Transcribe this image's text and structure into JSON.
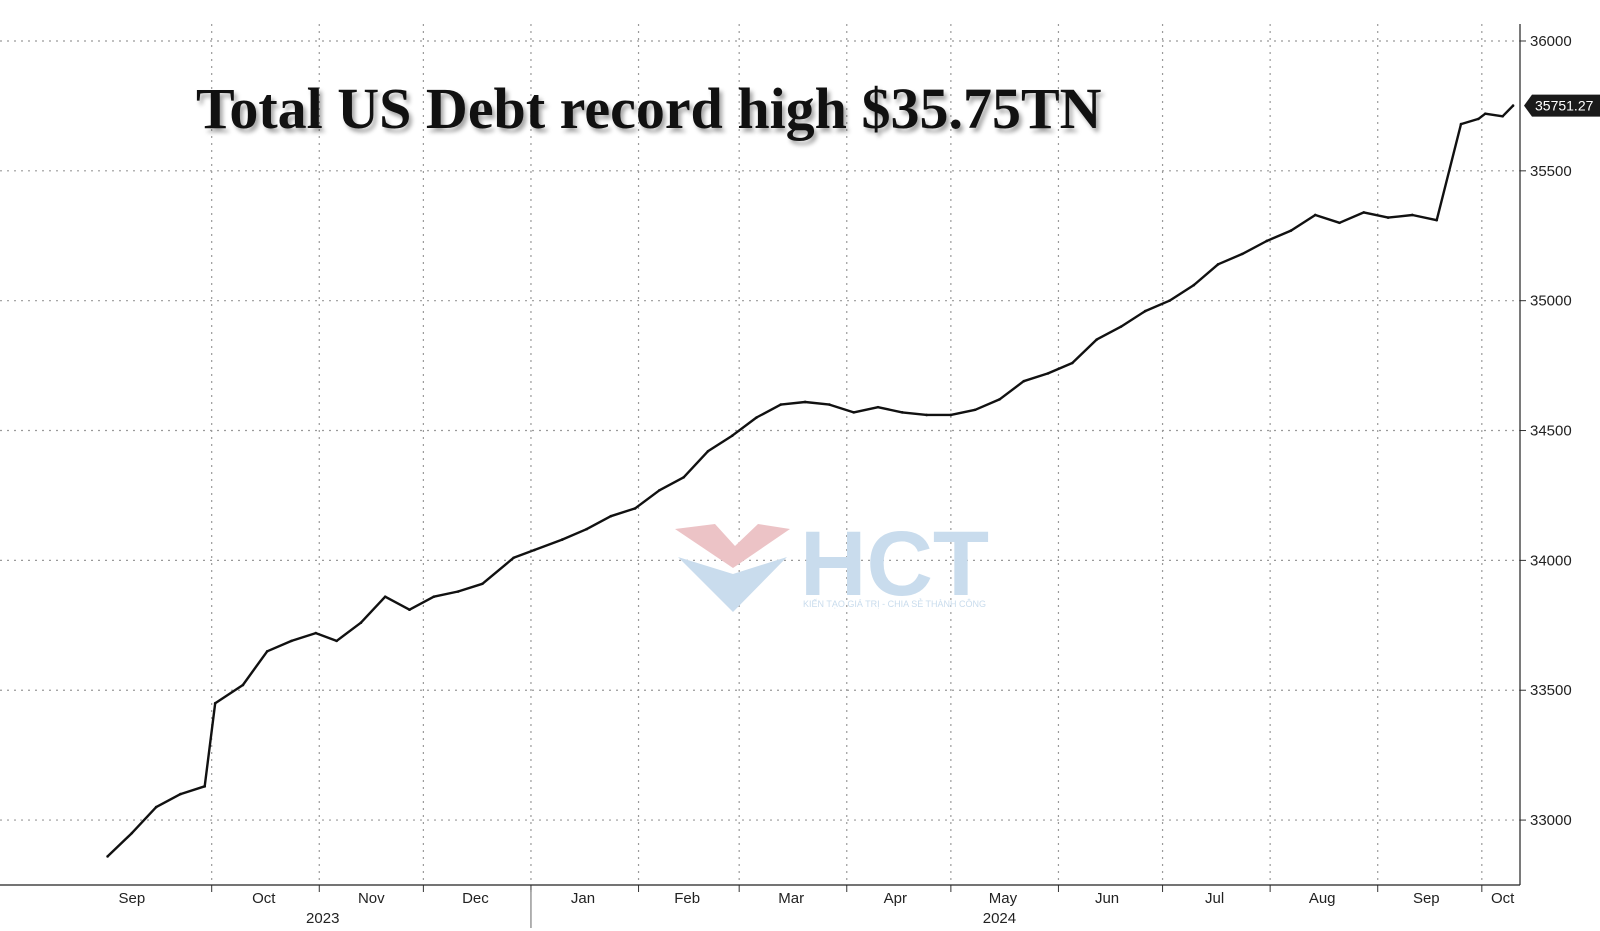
{
  "chart_data": {
    "type": "line",
    "title": "Total US Debt record high $35.75TN",
    "ylim": [
      32750,
      36050
    ],
    "y_ticks": [
      33000,
      33500,
      34000,
      34500,
      35000,
      35500,
      36000
    ],
    "y_tick_labels": [
      "33000",
      "33500",
      "34000",
      "34500",
      "35000",
      "35500",
      "36000"
    ],
    "x_month_labels": [
      "Sep",
      "Oct",
      "Nov",
      "Dec",
      "Jan",
      "Feb",
      "Mar",
      "Apr",
      "May",
      "Jun",
      "Jul",
      "Aug",
      "Sep",
      "Oct"
    ],
    "x_year_labels": [
      "2023",
      "2024"
    ],
    "grid": true,
    "last_value_label": "35751.27",
    "series": [
      {
        "color": "#111111",
        "x": [
          "2023-09-01",
          "2023-09-08",
          "2023-09-15",
          "2023-09-22",
          "2023-09-29",
          "2023-10-02",
          "2023-10-10",
          "2023-10-17",
          "2023-10-24",
          "2023-10-31",
          "2023-11-06",
          "2023-11-13",
          "2023-11-20",
          "2023-11-27",
          "2023-12-04",
          "2023-12-11",
          "2023-12-18",
          "2023-12-27",
          "2024-01-02",
          "2024-01-10",
          "2024-01-17",
          "2024-01-24",
          "2024-01-31",
          "2024-02-07",
          "2024-02-14",
          "2024-02-21",
          "2024-02-28",
          "2024-03-06",
          "2024-03-13",
          "2024-03-20",
          "2024-03-27",
          "2024-04-03",
          "2024-04-10",
          "2024-04-17",
          "2024-04-24",
          "2024-05-01",
          "2024-05-08",
          "2024-05-15",
          "2024-05-22",
          "2024-05-29",
          "2024-06-05",
          "2024-06-12",
          "2024-06-19",
          "2024-06-26",
          "2024-07-03",
          "2024-07-10",
          "2024-07-17",
          "2024-07-24",
          "2024-07-31",
          "2024-08-07",
          "2024-08-14",
          "2024-08-21",
          "2024-08-28",
          "2024-09-04",
          "2024-09-11",
          "2024-09-18",
          "2024-09-25",
          "2024-09-30",
          "2024-10-02",
          "2024-10-07",
          "2024-10-10"
        ],
        "y": [
          32860,
          32950,
          33050,
          33100,
          33130,
          33450,
          33520,
          33650,
          33690,
          33720,
          33690,
          33760,
          33860,
          33810,
          33860,
          33880,
          33910,
          34010,
          34040,
          34080,
          34120,
          34170,
          34200,
          34270,
          34320,
          34420,
          34480,
          34550,
          34600,
          34610,
          34600,
          34570,
          34590,
          34570,
          34560,
          34560,
          34580,
          34620,
          34690,
          34720,
          34760,
          34850,
          34900,
          34960,
          35000,
          35060,
          35140,
          35180,
          35230,
          35270,
          35330,
          35300,
          35340,
          35320,
          35330,
          35310,
          35680,
          35700,
          35720,
          35710,
          35751.27
        ]
      }
    ]
  },
  "watermark": {
    "brand": "HCT",
    "tagline": "KIẾN TẠO GIÁ TRỊ - CHIA SẺ THÀNH CÔNG",
    "colors": {
      "red": "#ecc3c6",
      "blue": "#c9dced"
    }
  }
}
